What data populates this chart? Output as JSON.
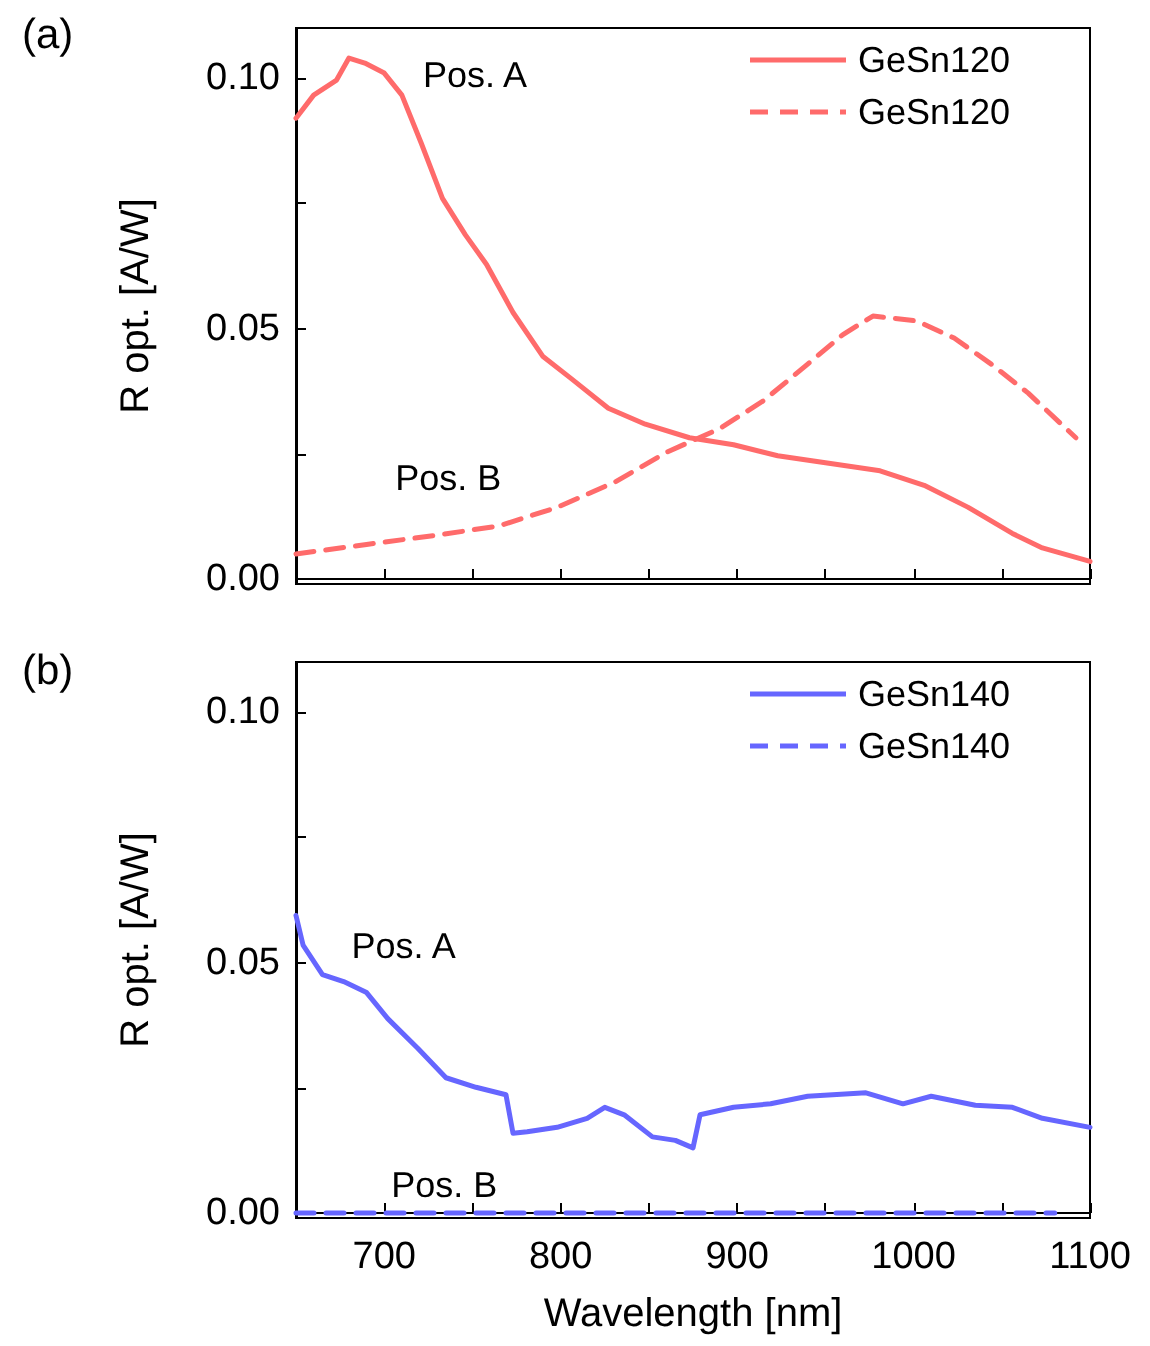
{
  "chart_data": [
    {
      "type": "line",
      "title": "(a)",
      "ylabel": "R opt. [A/W]",
      "xlim": [
        650,
        1100
      ],
      "ylim": [
        -0.001,
        0.11
      ],
      "xticks": [
        700,
        {
          "value": 750,
          "label": null
        },
        800,
        {
          "value": 850,
          "label": null
        },
        900,
        {
          "value": 950,
          "label": null
        },
        1000,
        {
          "value": 1050,
          "label": null
        },
        1100
      ],
      "yticks": [
        {
          "value": 0,
          "label": "0.00"
        },
        {
          "value": 0.025,
          "label": null
        },
        {
          "value": 0.05,
          "label": "0.05"
        },
        {
          "value": 0.075,
          "label": null
        },
        {
          "value": 0.1,
          "label": "0.10"
        }
      ],
      "tick_labels": "y",
      "legend": "top right",
      "grid": false,
      "marker": "none",
      "annotations": [
        "Pos. A",
        "Pos. B"
      ],
      "series": [
        {
          "name": "GeSn120",
          "color": "#ff6b6b",
          "line_style": "solid",
          "x": [
            650,
            660,
            673,
            680,
            689,
            700,
            710,
            721,
            733,
            746,
            758,
            773,
            790,
            806,
            827,
            848,
            873,
            898,
            923,
            952,
            981,
            1006,
            1031,
            1056,
            1073,
            1100
          ],
          "values": [
            0.092,
            0.0966,
            0.0996,
            0.104,
            0.103,
            0.101,
            0.0966,
            0.087,
            0.076,
            0.0687,
            0.0628,
            0.0532,
            0.0444,
            0.04,
            0.0341,
            0.0309,
            0.0282,
            0.0268,
            0.0246,
            0.0231,
            0.0216,
            0.0187,
            0.0143,
            0.0091,
            0.0062,
            0.0035
          ]
        },
        {
          "name": "GeSn120",
          "color": "#ff6b6b",
          "line_style": "dashed",
          "x": [
            650,
            690,
            731,
            765,
            798,
            831,
            860,
            890,
            915,
            940,
            960,
            977,
            1002,
            1023,
            1044,
            1065,
            1092
          ],
          "values": [
            0.005,
            0.0069,
            0.0088,
            0.0106,
            0.0143,
            0.0194,
            0.0253,
            0.03,
            0.0356,
            0.0429,
            0.0488,
            0.0525,
            0.0515,
            0.0481,
            0.0429,
            0.0371,
            0.0282
          ]
        }
      ]
    },
    {
      "type": "line",
      "title": "(b)",
      "xlabel": "Wavelength [nm]",
      "ylabel": "R opt. [A/W]",
      "xlim": [
        650,
        1100
      ],
      "ylim": [
        -0.001,
        0.11
      ],
      "xticks": [
        700,
        {
          "value": 750,
          "label": null
        },
        800,
        {
          "value": 850,
          "label": null
        },
        900,
        {
          "value": 950,
          "label": null
        },
        1000,
        {
          "value": 1050,
          "label": null
        },
        1100
      ],
      "yticks": [
        {
          "value": 0,
          "label": "0.00"
        },
        {
          "value": 0.025,
          "label": null
        },
        {
          "value": 0.05,
          "label": "0.05"
        },
        {
          "value": 0.075,
          "label": null
        },
        {
          "value": 0.1,
          "label": "0.10"
        }
      ],
      "legend": "top right",
      "grid": false,
      "marker": "none",
      "annotations": [
        "Pos. A",
        "Pos. B"
      ],
      "series": [
        {
          "name": "GeSn140",
          "color": "#6666ff",
          "line_style": "solid",
          "x": [
            650,
            654,
            665,
            677,
            690,
            702,
            719,
            735,
            752,
            769,
            773,
            781,
            798,
            815,
            825,
            836,
            852,
            865,
            875,
            879,
            898,
            919,
            940,
            973,
            994,
            1010,
            1035,
            1056,
            1073,
            1100
          ],
          "values": [
            0.0594,
            0.0535,
            0.0476,
            0.0462,
            0.044,
            0.0388,
            0.0329,
            0.027,
            0.0251,
            0.0236,
            0.0159,
            0.0162,
            0.0171,
            0.0189,
            0.0211,
            0.0196,
            0.0152,
            0.0145,
            0.013,
            0.0196,
            0.0211,
            0.0218,
            0.0233,
            0.024,
            0.0218,
            0.0233,
            0.0215,
            0.0211,
            0.0189,
            0.0171
          ]
        },
        {
          "name": "GeSn140",
          "color": "#6666ff",
          "line_style": "dashed",
          "x": [
            650,
            750,
            850,
            950,
            1080
          ],
          "values": [
            0,
            0,
            0,
            0,
            0
          ]
        }
      ]
    }
  ]
}
